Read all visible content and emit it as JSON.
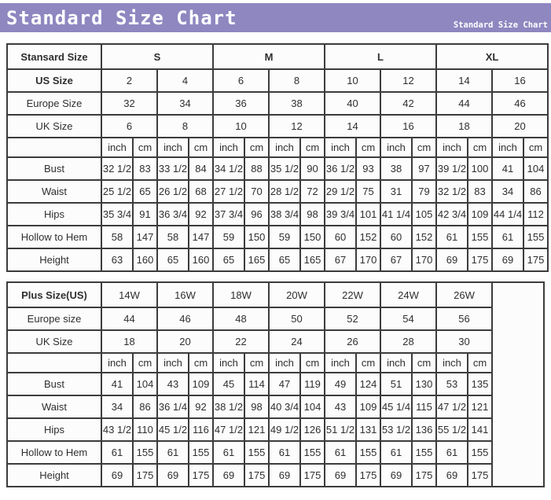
{
  "header": {
    "title": "Standard Size Chart",
    "subtitle": "Standard Size Chart",
    "bar_color": "#8e87c0",
    "text_color": "#ffffff"
  },
  "tables": [
    {
      "id": "standard-size-table",
      "trailing_empty_column": false,
      "rows": [
        {
          "label": "Stansard Size",
          "label_bold": true,
          "cells_bold": true,
          "colspan": 4,
          "cell_name": "size-group-header",
          "cells": [
            "S",
            "M",
            "L",
            "XL"
          ]
        },
        {
          "label": "US Size",
          "label_bold": true,
          "colspan": 2,
          "cell_name": "us-size-cell",
          "cells": [
            "2",
            "4",
            "6",
            "8",
            "10",
            "12",
            "14",
            "16"
          ]
        },
        {
          "label": "Europe Size",
          "colspan": 2,
          "cell_name": "europe-size-cell",
          "cells": [
            "32",
            "34",
            "36",
            "38",
            "40",
            "42",
            "44",
            "46"
          ]
        },
        {
          "label": "UK Size",
          "colspan": 2,
          "cell_name": "uk-size-cell",
          "cells": [
            "6",
            "8",
            "10",
            "12",
            "14",
            "16",
            "18",
            "20"
          ]
        },
        {
          "label": "",
          "type": "unit",
          "colspan": 1,
          "cell_name": "unit-cell",
          "cells": [
            "inch",
            "cm",
            "inch",
            "cm",
            "inch",
            "cm",
            "inch",
            "cm",
            "inch",
            "cm",
            "inch",
            "cm",
            "inch",
            "cm",
            "inch",
            "cm"
          ]
        },
        {
          "label": "Bust",
          "colspan": 1,
          "cell_name": "bust-cell",
          "cells": [
            "32 1/2",
            "83",
            "33 1/2",
            "84",
            "34 1/2",
            "88",
            "35 1/2",
            "90",
            "36 1/2",
            "93",
            "38",
            "97",
            "39 1/2",
            "100",
            "41",
            "104"
          ]
        },
        {
          "label": "Waist",
          "colspan": 1,
          "cell_name": "waist-cell",
          "cells": [
            "25 1/2",
            "65",
            "26 1/2",
            "68",
            "27 1/2",
            "70",
            "28 1/2",
            "72",
            "29 1/2",
            "75",
            "31",
            "79",
            "32 1/2",
            "83",
            "34",
            "86"
          ]
        },
        {
          "label": "Hips",
          "colspan": 1,
          "cell_name": "hips-cell",
          "cells": [
            "35 3/4",
            "91",
            "36 3/4",
            "92",
            "37 3/4",
            "96",
            "38 3/4",
            "98",
            "39 3/4",
            "101",
            "41 1/4",
            "105",
            "42 3/4",
            "109",
            "44 1/4",
            "112"
          ]
        },
        {
          "label": "Hollow to Hem",
          "colspan": 1,
          "cell_name": "hollow-to-hem-cell",
          "cells": [
            "58",
            "147",
            "58",
            "147",
            "59",
            "150",
            "59",
            "150",
            "60",
            "152",
            "60",
            "152",
            "61",
            "155",
            "61",
            "155"
          ]
        },
        {
          "label": "Height",
          "colspan": 1,
          "cell_name": "height-cell",
          "cells": [
            "63",
            "160",
            "65",
            "160",
            "65",
            "165",
            "65",
            "165",
            "67",
            "170",
            "67",
            "170",
            "69",
            "175",
            "69",
            "175"
          ]
        }
      ]
    },
    {
      "id": "plus-size-table",
      "trailing_empty_column": true,
      "rows": [
        {
          "label": "Plus Size(US)",
          "label_bold": true,
          "colspan": 2,
          "cell_name": "plus-size-header",
          "cells": [
            "14W",
            "16W",
            "18W",
            "20W",
            "22W",
            "24W",
            "26W"
          ]
        },
        {
          "label": "Europe size",
          "colspan": 2,
          "cell_name": "europe-size-cell",
          "cells": [
            "44",
            "46",
            "48",
            "50",
            "52",
            "54",
            "56"
          ]
        },
        {
          "label": "UK Size",
          "colspan": 2,
          "cell_name": "uk-size-cell",
          "cells": [
            "18",
            "20",
            "22",
            "24",
            "26",
            "28",
            "30"
          ]
        },
        {
          "label": "",
          "type": "unit",
          "colspan": 1,
          "cell_name": "unit-cell",
          "cells": [
            "inch",
            "cm",
            "inch",
            "cm",
            "inch",
            "cm",
            "inch",
            "cm",
            "inch",
            "cm",
            "inch",
            "cm",
            "inch",
            "cm"
          ]
        },
        {
          "label": "Bust",
          "colspan": 1,
          "cell_name": "bust-cell",
          "cells": [
            "41",
            "104",
            "43",
            "109",
            "45",
            "114",
            "47",
            "119",
            "49",
            "124",
            "51",
            "130",
            "53",
            "135"
          ]
        },
        {
          "label": "Waist",
          "colspan": 1,
          "cell_name": "waist-cell",
          "cells": [
            "34",
            "86",
            "36 1/4",
            "92",
            "38 1/2",
            "98",
            "40 3/4",
            "104",
            "43",
            "109",
            "45 1/4",
            "115",
            "47 1/2",
            "121"
          ]
        },
        {
          "label": "Hips",
          "colspan": 1,
          "cell_name": "hips-cell",
          "cells": [
            "43 1/2",
            "110",
            "45 1/2",
            "116",
            "47 1/2",
            "121",
            "49 1/2",
            "126",
            "51 1/2",
            "131",
            "53 1/2",
            "136",
            "55 1/2",
            "141"
          ]
        },
        {
          "label": "Hollow to Hem",
          "colspan": 1,
          "cell_name": "hollow-to-hem-cell",
          "cells": [
            "61",
            "155",
            "61",
            "155",
            "61",
            "155",
            "61",
            "155",
            "61",
            "155",
            "61",
            "155",
            "61",
            "155"
          ]
        },
        {
          "label": "Height",
          "colspan": 1,
          "cell_name": "height-cell",
          "cells": [
            "69",
            "175",
            "69",
            "175",
            "69",
            "175",
            "69",
            "175",
            "69",
            "175",
            "69",
            "175",
            "69",
            "175"
          ]
        }
      ]
    }
  ]
}
